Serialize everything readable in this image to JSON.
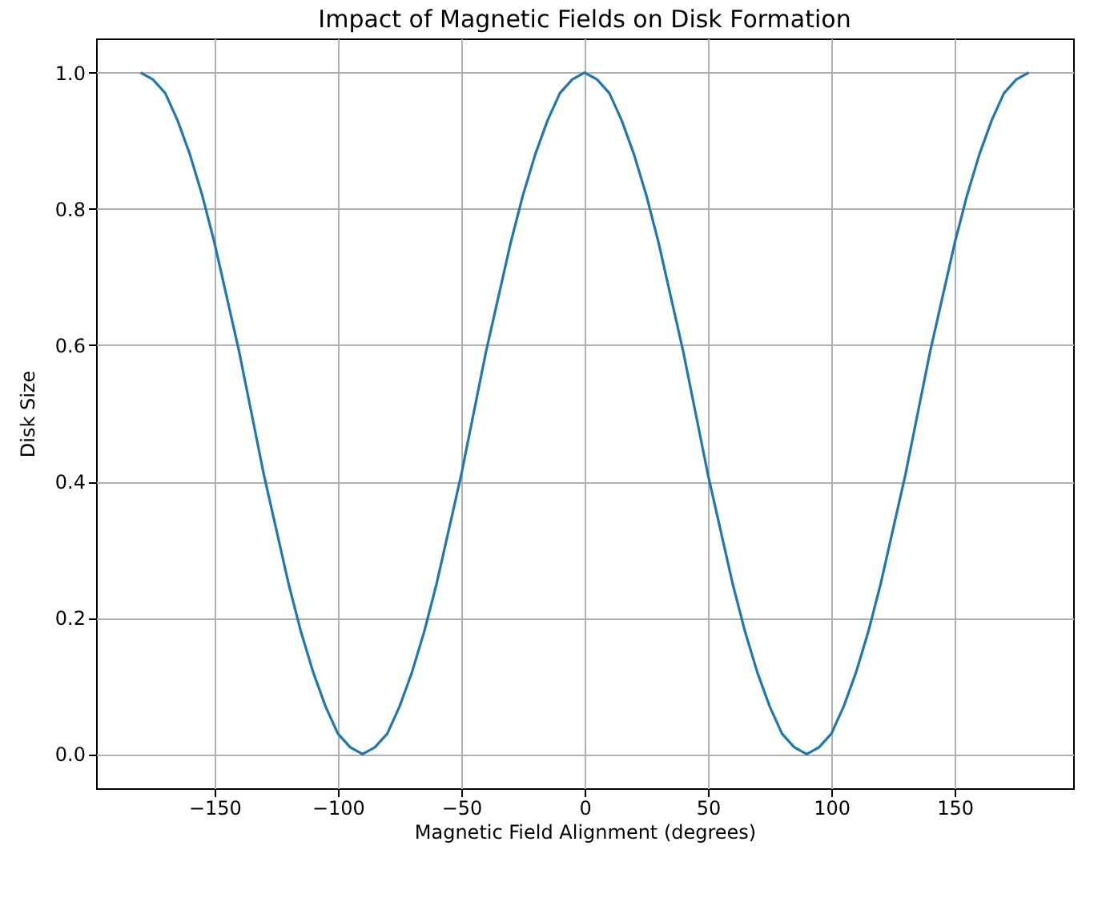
{
  "chart_data": {
    "type": "line",
    "title": "Impact of Magnetic Fields on Disk Formation",
    "xlabel": "Magnetic Field Alignment (degrees)",
    "ylabel": "Disk Size",
    "x": [
      -180,
      -175,
      -170,
      -165,
      -160,
      -155,
      -150,
      -145,
      -140,
      -135,
      -130,
      -125,
      -120,
      -115,
      -110,
      -105,
      -100,
      -95,
      -90,
      -85,
      -80,
      -75,
      -70,
      -65,
      -60,
      -55,
      -50,
      -45,
      -40,
      -35,
      -30,
      -25,
      -20,
      -15,
      -10,
      -5,
      0,
      5,
      10,
      15,
      20,
      25,
      30,
      35,
      40,
      45,
      50,
      55,
      60,
      65,
      70,
      75,
      80,
      85,
      90,
      95,
      100,
      105,
      110,
      115,
      120,
      125,
      130,
      135,
      140,
      145,
      150,
      155,
      160,
      165,
      170,
      175,
      180
    ],
    "series": [
      {
        "color": "#1f77b4",
        "values": [
          1,
          0.99,
          0.97,
          0.93,
          0.88,
          0.82,
          0.75,
          0.67,
          0.59,
          0.5,
          0.41,
          0.33,
          0.25,
          0.18,
          0.12,
          0.07,
          0.03,
          0.01,
          0,
          0.01,
          0.03,
          0.07,
          0.12,
          0.18,
          0.25,
          0.33,
          0.41,
          0.5,
          0.59,
          0.67,
          0.75,
          0.82,
          0.88,
          0.93,
          0.97,
          0.99,
          1,
          0.99,
          0.97,
          0.93,
          0.88,
          0.82,
          0.75,
          0.67,
          0.59,
          0.5,
          0.41,
          0.33,
          0.25,
          0.18,
          0.12,
          0.07,
          0.03,
          0.01,
          0,
          0.01,
          0.03,
          0.07,
          0.12,
          0.18,
          0.25,
          0.33,
          0.41,
          0.5,
          0.59,
          0.67,
          0.75,
          0.82,
          0.88,
          0.93,
          0.97,
          0.99,
          1
        ]
      }
    ],
    "xlim": [
      -198,
      198
    ],
    "xticks": [
      {
        "value": -150,
        "label": "−150"
      },
      {
        "value": -100,
        "label": "−100"
      },
      {
        "value": -50,
        "label": "−50"
      },
      0,
      50,
      100,
      150
    ],
    "ylim": [
      -0.05,
      1.05
    ],
    "yticks": [
      {
        "value": 0,
        "label": "0.0"
      },
      {
        "value": 0.2,
        "label": "0.2"
      },
      {
        "value": 0.4,
        "label": "0.4"
      },
      {
        "value": 0.6,
        "label": "0.6"
      },
      {
        "value": 0.8,
        "label": "0.8"
      },
      {
        "value": 1,
        "label": "1.0"
      }
    ],
    "grid": true,
    "line_style": "solid"
  }
}
